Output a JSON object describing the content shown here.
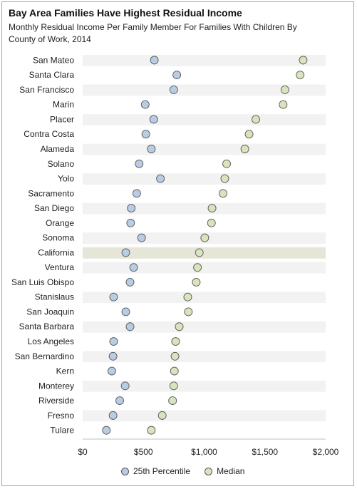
{
  "chart_data": {
    "type": "scatter",
    "title": "Bay Area Families Have Highest Residual Income",
    "subtitle": "Monthly Residual Income Per Family Member For Families With Children By County of Work, 2014",
    "categories": [
      "San Mateo",
      "Santa Clara",
      "San Francisco",
      "Marin",
      "Placer",
      "Contra Costa",
      "Alameda",
      "Solano",
      "Yolo",
      "Sacramento",
      "San Diego",
      "Orange",
      "Sonoma",
      "California",
      "Ventura",
      "San Luis Obispo",
      "Stanislaus",
      "San Joaquin",
      "Santa Barbara",
      "Los Angeles",
      "San Bernardino",
      "Kern",
      "Monterey",
      "Riverside",
      "Fresno",
      "Tulare"
    ],
    "highlight_category": "California",
    "series": [
      {
        "name": "25th Percentile",
        "color": "#b8cce4",
        "values": [
          590,
          775,
          750,
          515,
          585,
          520,
          565,
          465,
          640,
          445,
          400,
          395,
          485,
          355,
          420,
          390,
          255,
          355,
          390,
          255,
          250,
          240,
          350,
          305,
          250,
          195
        ]
      },
      {
        "name": "Median",
        "color": "#d7e4bd",
        "values": [
          1815,
          1790,
          1665,
          1650,
          1425,
          1370,
          1335,
          1185,
          1170,
          1155,
          1065,
          1060,
          1005,
          960,
          945,
          935,
          865,
          870,
          795,
          765,
          760,
          755,
          750,
          740,
          655,
          565
        ]
      }
    ],
    "x_ticks": [
      "$0",
      "$500",
      "$1,000",
      "$1,500",
      "$2,000"
    ],
    "xlim": [
      0,
      2000
    ],
    "legend_position": "bottom"
  }
}
